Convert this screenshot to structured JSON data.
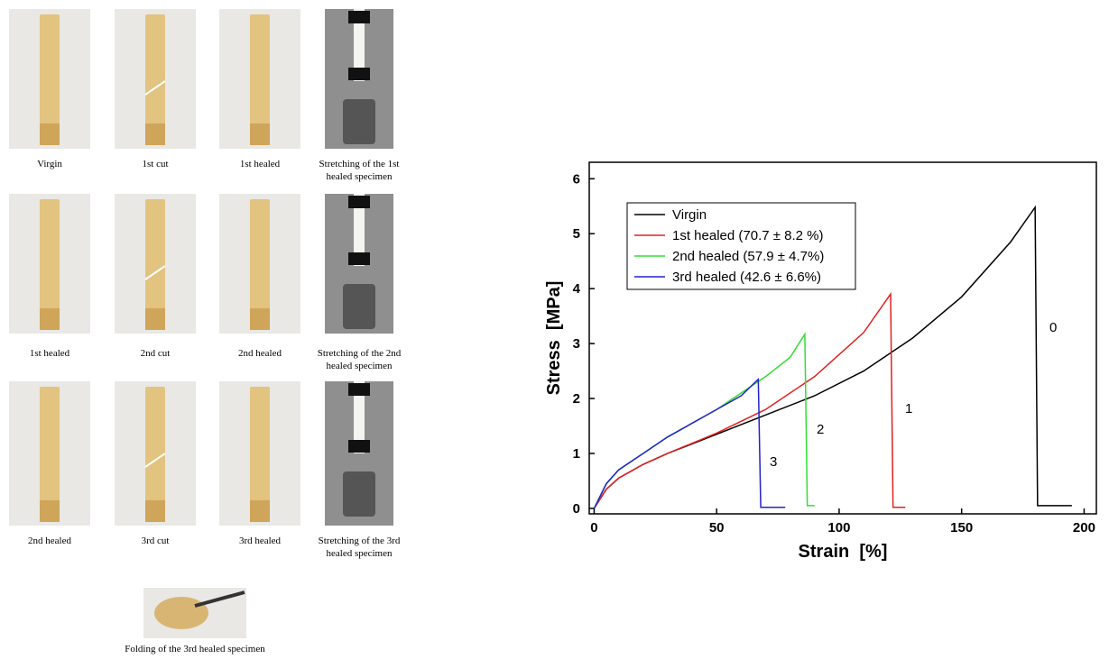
{
  "panels": [
    {
      "caption": [
        "Virgin"
      ]
    },
    {
      "caption": [
        "1st cut"
      ]
    },
    {
      "caption": [
        "1st healed"
      ]
    },
    {
      "caption": [
        "Stretching of the 1st",
        "healed specimen"
      ]
    },
    {
      "caption": [
        "1st healed"
      ]
    },
    {
      "caption": [
        "2nd cut"
      ]
    },
    {
      "caption": [
        "2nd healed"
      ]
    },
    {
      "caption": [
        "Stretching of the 2nd",
        "healed specimen"
      ]
    },
    {
      "caption": [
        "2nd healed"
      ]
    },
    {
      "caption": [
        "3rd cut"
      ]
    },
    {
      "caption": [
        "3rd healed"
      ]
    },
    {
      "caption": [
        "Stretching of the 3rd",
        "healed specimen"
      ]
    },
    {
      "caption": [
        "Folding of the 3rd healed specimen"
      ]
    }
  ],
  "chart_data": {
    "type": "line",
    "x_label": "Strain  [%]",
    "y_label": "Stress  [MPa]",
    "xlim": [
      -2,
      205
    ],
    "ylim": [
      -0.1,
      6.3
    ],
    "xticks": [
      0,
      50,
      100,
      150,
      200
    ],
    "yticks": [
      0,
      1,
      2,
      3,
      4,
      5,
      6
    ],
    "legend": "top-left",
    "annotations": [
      "0",
      "1",
      "2",
      "3"
    ],
    "series": [
      {
        "name": "Virgin",
        "color": "#000000",
        "x": [
          0,
          5,
          10,
          20,
          30,
          50,
          70,
          90,
          110,
          130,
          150,
          170,
          180,
          181,
          195
        ],
        "values": [
          0,
          0.35,
          0.55,
          0.8,
          1.0,
          1.35,
          1.7,
          2.05,
          2.5,
          3.1,
          3.85,
          4.85,
          5.48,
          0.05,
          0.05
        ]
      },
      {
        "name": "1st healed (70.7 ± 8.2 %)",
        "color": "#e02020",
        "x": [
          0,
          5,
          10,
          20,
          30,
          50,
          70,
          90,
          110,
          121,
          122,
          127
        ],
        "values": [
          0,
          0.35,
          0.55,
          0.8,
          1.0,
          1.37,
          1.8,
          2.4,
          3.2,
          3.9,
          0.02,
          0.02
        ]
      },
      {
        "name": "2nd healed (57.9 ± 4.7%)",
        "color": "#33dd33",
        "x": [
          0,
          5,
          10,
          20,
          30,
          50,
          70,
          80,
          86,
          87,
          90
        ],
        "values": [
          0,
          0.45,
          0.7,
          1.0,
          1.3,
          1.8,
          2.4,
          2.75,
          3.17,
          0.05,
          0.05
        ]
      },
      {
        "name": "3rd healed (42.6 ± 6.6%)",
        "color": "#2222cc",
        "x": [
          0,
          5,
          10,
          20,
          30,
          50,
          60,
          67,
          68,
          78
        ],
        "values": [
          0,
          0.45,
          0.7,
          1.0,
          1.3,
          1.8,
          2.05,
          2.35,
          0.02,
          0.02
        ]
      }
    ]
  }
}
